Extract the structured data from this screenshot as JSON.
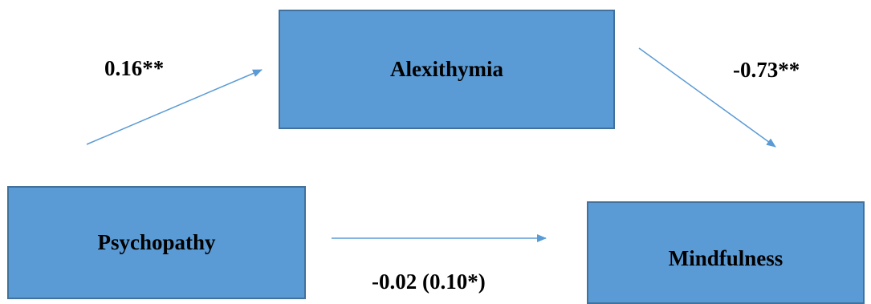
{
  "nodes": {
    "alexithymia": "Alexithymia",
    "psychopathy": "Psychopathy",
    "mindfulness": "Mindfulness"
  },
  "paths": {
    "a": "0.16**",
    "b": "-0.73**",
    "c": "-0.02 (0.10*)"
  },
  "colors": {
    "box_fill": "#5b9bd5",
    "box_border": "#41719c",
    "arrow": "#5b9bd5"
  }
}
